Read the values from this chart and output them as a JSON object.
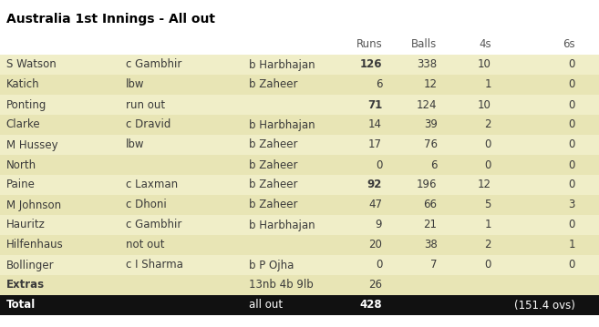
{
  "title": "Australia 1st Innings - All out",
  "rows": [
    {
      "batsman": "S Watson",
      "how1": "c Gambhir",
      "how2": "b Harbhajan",
      "runs": "126",
      "balls": "338",
      "fours": "10",
      "sixes": "0",
      "runs_bold": true,
      "bold_row": false
    },
    {
      "batsman": "Katich",
      "how1": "lbw",
      "how2": "b Zaheer",
      "runs": "6",
      "balls": "12",
      "fours": "1",
      "sixes": "0",
      "runs_bold": false,
      "bold_row": false
    },
    {
      "batsman": "Ponting",
      "how1": "run out",
      "how2": "",
      "runs": "71",
      "balls": "124",
      "fours": "10",
      "sixes": "0",
      "runs_bold": true,
      "bold_row": false
    },
    {
      "batsman": "Clarke",
      "how1": "c Dravid",
      "how2": "b Harbhajan",
      "runs": "14",
      "balls": "39",
      "fours": "2",
      "sixes": "0",
      "runs_bold": false,
      "bold_row": false
    },
    {
      "batsman": "M Hussey",
      "how1": "lbw",
      "how2": "b Zaheer",
      "runs": "17",
      "balls": "76",
      "fours": "0",
      "sixes": "0",
      "runs_bold": false,
      "bold_row": false
    },
    {
      "batsman": "North",
      "how1": "",
      "how2": "b Zaheer",
      "runs": "0",
      "balls": "6",
      "fours": "0",
      "sixes": "0",
      "runs_bold": false,
      "bold_row": false
    },
    {
      "batsman": "Paine",
      "how1": "c Laxman",
      "how2": "b Zaheer",
      "runs": "92",
      "balls": "196",
      "fours": "12",
      "sixes": "0",
      "runs_bold": true,
      "bold_row": false
    },
    {
      "batsman": "M Johnson",
      "how1": "c Dhoni",
      "how2": "b Zaheer",
      "runs": "47",
      "balls": "66",
      "fours": "5",
      "sixes": "3",
      "runs_bold": false,
      "bold_row": false
    },
    {
      "batsman": "Hauritz",
      "how1": "c Gambhir",
      "how2": "b Harbhajan",
      "runs": "9",
      "balls": "21",
      "fours": "1",
      "sixes": "0",
      "runs_bold": false,
      "bold_row": false
    },
    {
      "batsman": "Hilfenhaus",
      "how1": "not out",
      "how2": "",
      "runs": "20",
      "balls": "38",
      "fours": "2",
      "sixes": "1",
      "runs_bold": false,
      "bold_row": false
    },
    {
      "batsman": "Bollinger",
      "how1": "c I Sharma",
      "how2": "b P Ojha",
      "runs": "0",
      "balls": "7",
      "fours": "0",
      "sixes": "0",
      "runs_bold": false,
      "bold_row": false
    },
    {
      "batsman": "Extras",
      "how1": "",
      "how2": "13nb 4b 9lb",
      "runs": "26",
      "balls": "",
      "fours": "",
      "sixes": "",
      "runs_bold": false,
      "bold_row": true
    }
  ],
  "total_row": {
    "label": "Total",
    "how": "all out",
    "runs": "428",
    "extra": "(151.4 ovs)"
  },
  "bg_colors": [
    "#f0eec8",
    "#e8e5b5"
  ],
  "extras_bg": "#e8e5b5",
  "total_bg": "#111111",
  "total_fg": "#ffffff",
  "title_color": "#000000",
  "text_color": "#3a3a3a",
  "header_color": "#555555",
  "col_batsman": 0.01,
  "col_how1": 0.21,
  "col_how2": 0.415,
  "col_runs": 0.638,
  "col_balls": 0.73,
  "col_fours": 0.82,
  "col_sixes": 0.96,
  "font_family": "DejaVu Sans",
  "font_size": 8.5,
  "title_font_size": 10.0
}
